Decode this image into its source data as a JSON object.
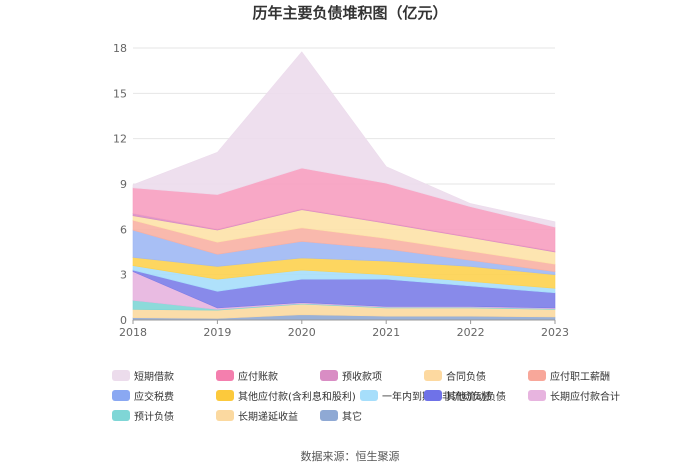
{
  "title": "历年主要负债堆积图（亿元）",
  "source": "数据来源：恒生聚源",
  "chart_data": {
    "type": "area",
    "stacked": true,
    "x": [
      "2018",
      "2019",
      "2020",
      "2021",
      "2022",
      "2023"
    ],
    "yticks": [
      "0",
      "3",
      "6",
      "9",
      "12",
      "15",
      "18"
    ],
    "ylim": [
      0,
      18
    ],
    "grid": true,
    "legend_position": "bottom",
    "series": [
      {
        "name": "其它",
        "color": "#8fa9d4",
        "values": [
          0.15,
          0.1,
          0.35,
          0.25,
          0.25,
          0.2
        ]
      },
      {
        "name": "长期递延收益",
        "color": "#fbd9a0",
        "values": [
          0.55,
          0.55,
          0.7,
          0.55,
          0.55,
          0.5
        ]
      },
      {
        "name": "预计负债",
        "color": "#7fd6d6",
        "values": [
          0.6,
          0.05,
          0.05,
          0.05,
          0.05,
          0.05
        ]
      },
      {
        "name": "长期应付款合计",
        "color": "#e7b4df",
        "values": [
          1.9,
          0.1,
          0.05,
          0.05,
          0.05,
          0.05
        ]
      },
      {
        "name": "其他流动负债",
        "color": "#7b7de8",
        "values": [
          0.1,
          1.1,
          1.55,
          1.8,
          1.35,
          1.0
        ]
      },
      {
        "name": "一年内到期的非流动负债",
        "color": "#a6defb",
        "values": [
          0.3,
          0.8,
          0.6,
          0.3,
          0.3,
          0.3
        ]
      },
      {
        "name": "其他应付款(含利息和股利)",
        "color": "#fdd24f",
        "values": [
          0.55,
          0.85,
          0.8,
          0.9,
          1.0,
          0.9
        ]
      },
      {
        "name": "应交税费",
        "color": "#9fb8f4",
        "values": [
          1.8,
          0.8,
          1.1,
          0.8,
          0.4,
          0.2
        ]
      },
      {
        "name": "应付职工薪酬",
        "color": "#f8b1a4",
        "values": [
          0.65,
          0.8,
          0.9,
          0.7,
          0.6,
          0.5
        ]
      },
      {
        "name": "合同负债",
        "color": "#fde2a8",
        "values": [
          0.3,
          0.8,
          1.2,
          1.0,
          0.9,
          0.8
        ]
      },
      {
        "name": "预收款项",
        "color": "#d98dc4",
        "values": [
          0.15,
          0.05,
          0.05,
          0.05,
          0.05,
          0.05
        ]
      },
      {
        "name": "应付账款",
        "color": "#f79ec0",
        "values": [
          1.7,
          2.3,
          2.7,
          2.6,
          2.0,
          1.6
        ]
      },
      {
        "name": "短期借款",
        "color": "#ecdcec",
        "values": [
          0.2,
          2.8,
          7.7,
          1.1,
          0.2,
          0.35
        ]
      }
    ],
    "legend": [
      {
        "name": "短期借款",
        "color": "#ecdcec"
      },
      {
        "name": "应付账款",
        "color": "#f47fae"
      },
      {
        "name": "预收款项",
        "color": "#d98dc4"
      },
      {
        "name": "合同负债",
        "color": "#fdd9a0"
      },
      {
        "name": "应付职工薪酬",
        "color": "#f8a79a"
      },
      {
        "name": "应交税费",
        "color": "#8aa8f2"
      },
      {
        "name": "其他应付款(含利息和股利)",
        "color": "#fcc93c"
      },
      {
        "name": "一年内到期的非流动负债",
        "color": "#a6defb"
      },
      {
        "name": "其他流动负债",
        "color": "#6f72e8"
      },
      {
        "name": "长期应付款合计",
        "color": "#e7b4df"
      },
      {
        "name": "预计负债",
        "color": "#7fd6d6"
      },
      {
        "name": "长期递延收益",
        "color": "#fbd9a0"
      },
      {
        "name": "其它",
        "color": "#8fa9d4"
      }
    ]
  }
}
